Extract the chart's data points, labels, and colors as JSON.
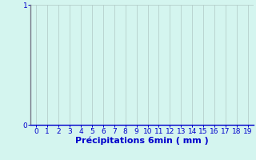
{
  "title": "",
  "xlabel": "Précipitations 6min ( mm )",
  "ylabel": "",
  "xlim": [
    -0.5,
    19.5
  ],
  "ylim": [
    0,
    1
  ],
  "xticks": [
    0,
    1,
    2,
    3,
    4,
    5,
    6,
    7,
    8,
    9,
    10,
    11,
    12,
    13,
    14,
    15,
    16,
    17,
    18,
    19
  ],
  "yticks": [
    0,
    1
  ],
  "background_color": "#d4f5ef",
  "grid_color": "#b0c8c4",
  "label_color": "#0000cc",
  "tick_color": "#0000cc",
  "xlabel_fontsize": 8,
  "tick_fontsize": 6.5,
  "left_spine_color": "#777788",
  "bottom_spine_color": "#0000cc"
}
